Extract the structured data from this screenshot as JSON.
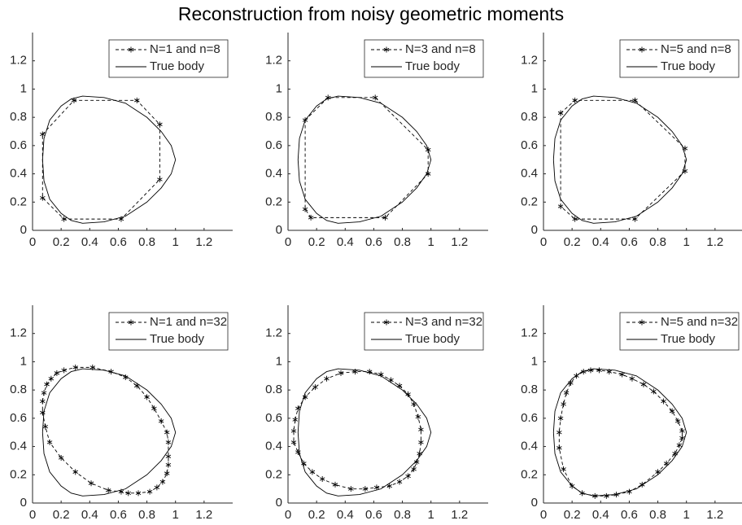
{
  "title": "Reconstruction from noisy geometric moments",
  "chart_data": [
    {
      "type": "line",
      "xlim": [
        0,
        1.4
      ],
      "ylim": [
        0,
        1.4
      ],
      "xticks": [
        0,
        0.2,
        0.4,
        0.6,
        0.8,
        1,
        1.2
      ],
      "yticks": [
        0,
        0.2,
        0.4,
        0.6,
        0.8,
        1,
        1.2
      ],
      "legend": "northeast",
      "series": [
        {
          "name": "N=1 and n=8",
          "color": "#000000",
          "line_style": "dashed",
          "marker": "*",
          "x": [
            0.07,
            0.29,
            0.73,
            0.89,
            0.89,
            0.62,
            0.22,
            0.07
          ],
          "values": [
            0.68,
            0.92,
            0.92,
            0.75,
            0.36,
            0.08,
            0.08,
            0.23
          ]
        },
        {
          "name": "True body",
          "color": "#000000",
          "line_style": "solid",
          "x": [
            1.0,
            0.97,
            0.9,
            0.8,
            0.65,
            0.5,
            0.35,
            0.27,
            0.2,
            0.12,
            0.08,
            0.07,
            0.08,
            0.12,
            0.2,
            0.27,
            0.35,
            0.5,
            0.65,
            0.8,
            0.9,
            0.97
          ],
          "values": [
            0.5,
            0.6,
            0.7,
            0.8,
            0.9,
            0.94,
            0.95,
            0.93,
            0.88,
            0.78,
            0.65,
            0.5,
            0.35,
            0.22,
            0.12,
            0.07,
            0.05,
            0.06,
            0.1,
            0.2,
            0.3,
            0.4
          ]
        }
      ]
    },
    {
      "type": "line",
      "xlim": [
        0,
        1.4
      ],
      "ylim": [
        0,
        1.4
      ],
      "xticks": [
        0,
        0.2,
        0.4,
        0.6,
        0.8,
        1,
        1.2
      ],
      "yticks": [
        0,
        0.2,
        0.4,
        0.6,
        0.8,
        1,
        1.2
      ],
      "legend": "northeast",
      "series": [
        {
          "name": "N=3 and n=8",
          "color": "#000000",
          "line_style": "dashed",
          "marker": "*",
          "x": [
            0.12,
            0.28,
            0.61,
            0.98,
            0.98,
            0.68,
            0.16,
            0.12
          ],
          "values": [
            0.78,
            0.94,
            0.94,
            0.57,
            0.4,
            0.09,
            0.09,
            0.15
          ]
        },
        {
          "name": "True body",
          "color": "#000000",
          "line_style": "solid",
          "x": [
            1.0,
            0.97,
            0.9,
            0.8,
            0.65,
            0.5,
            0.35,
            0.27,
            0.2,
            0.12,
            0.08,
            0.07,
            0.08,
            0.12,
            0.2,
            0.27,
            0.35,
            0.5,
            0.65,
            0.8,
            0.9,
            0.97
          ],
          "values": [
            0.5,
            0.6,
            0.7,
            0.8,
            0.9,
            0.94,
            0.95,
            0.93,
            0.88,
            0.78,
            0.65,
            0.5,
            0.35,
            0.22,
            0.12,
            0.07,
            0.05,
            0.06,
            0.1,
            0.2,
            0.3,
            0.4
          ]
        }
      ]
    },
    {
      "type": "line",
      "xlim": [
        0,
        1.4
      ],
      "ylim": [
        0,
        1.4
      ],
      "xticks": [
        0,
        0.2,
        0.4,
        0.6,
        0.8,
        1,
        1.2
      ],
      "yticks": [
        0,
        0.2,
        0.4,
        0.6,
        0.8,
        1,
        1.2
      ],
      "legend": "northeast",
      "series": [
        {
          "name": "N=5 and n=8",
          "color": "#000000",
          "line_style": "dashed",
          "marker": "*",
          "x": [
            0.12,
            0.22,
            0.64,
            0.99,
            0.99,
            0.64,
            0.22,
            0.12
          ],
          "values": [
            0.83,
            0.92,
            0.92,
            0.58,
            0.42,
            0.08,
            0.08,
            0.17
          ]
        },
        {
          "name": "True body",
          "color": "#000000",
          "line_style": "solid",
          "x": [
            1.0,
            0.97,
            0.9,
            0.8,
            0.65,
            0.5,
            0.35,
            0.27,
            0.2,
            0.12,
            0.08,
            0.07,
            0.08,
            0.12,
            0.2,
            0.27,
            0.35,
            0.5,
            0.65,
            0.8,
            0.9,
            0.97
          ],
          "values": [
            0.5,
            0.6,
            0.7,
            0.8,
            0.9,
            0.94,
            0.95,
            0.93,
            0.88,
            0.78,
            0.65,
            0.5,
            0.35,
            0.22,
            0.12,
            0.07,
            0.05,
            0.06,
            0.1,
            0.2,
            0.3,
            0.4
          ]
        }
      ]
    },
    {
      "type": "line",
      "xlim": [
        0,
        1.4
      ],
      "ylim": [
        0,
        1.4
      ],
      "xticks": [
        0,
        0.2,
        0.4,
        0.6,
        0.8,
        1,
        1.2
      ],
      "yticks": [
        0,
        0.2,
        0.4,
        0.6,
        0.8,
        1,
        1.2
      ],
      "legend": "northeast",
      "series": [
        {
          "name": "N=1 and n=32",
          "color": "#000000",
          "line_style": "dashed",
          "marker": "*",
          "x": [
            0.07,
            0.08,
            0.1,
            0.13,
            0.17,
            0.22,
            0.3,
            0.42,
            0.55,
            0.65,
            0.73,
            0.8,
            0.85,
            0.9,
            0.94,
            0.95,
            0.95,
            0.95,
            0.94,
            0.91,
            0.87,
            0.82,
            0.74,
            0.67,
            0.62,
            0.53,
            0.41,
            0.3,
            0.2,
            0.12,
            0.09,
            0.07
          ],
          "values": [
            0.72,
            0.78,
            0.84,
            0.88,
            0.92,
            0.94,
            0.96,
            0.96,
            0.93,
            0.89,
            0.83,
            0.75,
            0.67,
            0.58,
            0.5,
            0.43,
            0.33,
            0.27,
            0.21,
            0.15,
            0.11,
            0.08,
            0.07,
            0.07,
            0.08,
            0.09,
            0.14,
            0.22,
            0.32,
            0.43,
            0.54,
            0.64
          ]
        },
        {
          "name": "True body",
          "color": "#000000",
          "line_style": "solid",
          "x": [
            1.0,
            0.97,
            0.9,
            0.8,
            0.65,
            0.5,
            0.35,
            0.27,
            0.2,
            0.12,
            0.08,
            0.07,
            0.08,
            0.12,
            0.2,
            0.27,
            0.35,
            0.5,
            0.65,
            0.8,
            0.9,
            0.97
          ],
          "values": [
            0.5,
            0.6,
            0.7,
            0.8,
            0.9,
            0.94,
            0.95,
            0.93,
            0.88,
            0.78,
            0.65,
            0.5,
            0.35,
            0.22,
            0.12,
            0.07,
            0.05,
            0.06,
            0.1,
            0.2,
            0.3,
            0.4
          ]
        }
      ]
    },
    {
      "type": "line",
      "xlim": [
        0,
        1.4
      ],
      "ylim": [
        0,
        1.4
      ],
      "xticks": [
        0,
        0.2,
        0.4,
        0.6,
        0.8,
        1,
        1.2
      ],
      "yticks": [
        0,
        0.2,
        0.4,
        0.6,
        0.8,
        1,
        1.2
      ],
      "legend": "northeast",
      "series": [
        {
          "name": "N=3 and n=32",
          "color": "#000000",
          "line_style": "dashed",
          "marker": "*",
          "x": [
            0.05,
            0.07,
            0.12,
            0.19,
            0.27,
            0.37,
            0.47,
            0.57,
            0.65,
            0.72,
            0.78,
            0.84,
            0.88,
            0.91,
            0.93,
            0.93,
            0.92,
            0.9,
            0.88,
            0.84,
            0.78,
            0.71,
            0.62,
            0.54,
            0.44,
            0.33,
            0.24,
            0.17,
            0.11,
            0.07,
            0.04,
            0.04
          ],
          "values": [
            0.59,
            0.67,
            0.75,
            0.82,
            0.88,
            0.92,
            0.93,
            0.93,
            0.91,
            0.87,
            0.83,
            0.77,
            0.7,
            0.61,
            0.52,
            0.43,
            0.35,
            0.29,
            0.24,
            0.19,
            0.15,
            0.12,
            0.11,
            0.1,
            0.1,
            0.13,
            0.17,
            0.22,
            0.28,
            0.36,
            0.43,
            0.51
          ]
        },
        {
          "name": "True body",
          "color": "#000000",
          "line_style": "solid",
          "x": [
            1.0,
            0.97,
            0.9,
            0.8,
            0.65,
            0.5,
            0.35,
            0.27,
            0.2,
            0.12,
            0.08,
            0.07,
            0.08,
            0.12,
            0.2,
            0.27,
            0.35,
            0.5,
            0.65,
            0.8,
            0.9,
            0.97
          ],
          "values": [
            0.5,
            0.6,
            0.7,
            0.8,
            0.9,
            0.94,
            0.95,
            0.93,
            0.88,
            0.78,
            0.65,
            0.5,
            0.35,
            0.22,
            0.12,
            0.07,
            0.05,
            0.06,
            0.1,
            0.2,
            0.3,
            0.4
          ]
        }
      ]
    },
    {
      "type": "line",
      "xlim": [
        0,
        1.4
      ],
      "ylim": [
        0,
        1.4
      ],
      "xticks": [
        0,
        0.2,
        0.4,
        0.6,
        0.8,
        1,
        1.2
      ],
      "yticks": [
        0,
        0.2,
        0.4,
        0.6,
        0.8,
        1,
        1.2
      ],
      "legend": "northeast",
      "series": [
        {
          "name": "N=5 and n=32",
          "color": "#000000",
          "line_style": "dashed",
          "marker": "*",
          "x": [
            0.11,
            0.11,
            0.12,
            0.14,
            0.16,
            0.19,
            0.23,
            0.28,
            0.33,
            0.39,
            0.46,
            0.55,
            0.62,
            0.7,
            0.77,
            0.84,
            0.9,
            0.94,
            0.97,
            0.97,
            0.95,
            0.92,
            0.86,
            0.8,
            0.69,
            0.6,
            0.51,
            0.44,
            0.36,
            0.27,
            0.2,
            0.14
          ],
          "values": [
            0.39,
            0.5,
            0.6,
            0.7,
            0.78,
            0.85,
            0.9,
            0.93,
            0.94,
            0.94,
            0.93,
            0.91,
            0.88,
            0.84,
            0.79,
            0.72,
            0.65,
            0.58,
            0.51,
            0.46,
            0.41,
            0.35,
            0.28,
            0.22,
            0.13,
            0.08,
            0.06,
            0.05,
            0.05,
            0.07,
            0.12,
            0.24
          ]
        },
        {
          "name": "True body",
          "color": "#000000",
          "line_style": "solid",
          "x": [
            1.0,
            0.97,
            0.9,
            0.8,
            0.65,
            0.5,
            0.35,
            0.27,
            0.2,
            0.12,
            0.08,
            0.07,
            0.08,
            0.12,
            0.2,
            0.27,
            0.35,
            0.5,
            0.65,
            0.8,
            0.9,
            0.97
          ],
          "values": [
            0.5,
            0.6,
            0.7,
            0.8,
            0.9,
            0.94,
            0.95,
            0.93,
            0.88,
            0.78,
            0.65,
            0.5,
            0.35,
            0.22,
            0.12,
            0.07,
            0.05,
            0.06,
            0.1,
            0.2,
            0.3,
            0.4
          ]
        }
      ]
    }
  ]
}
